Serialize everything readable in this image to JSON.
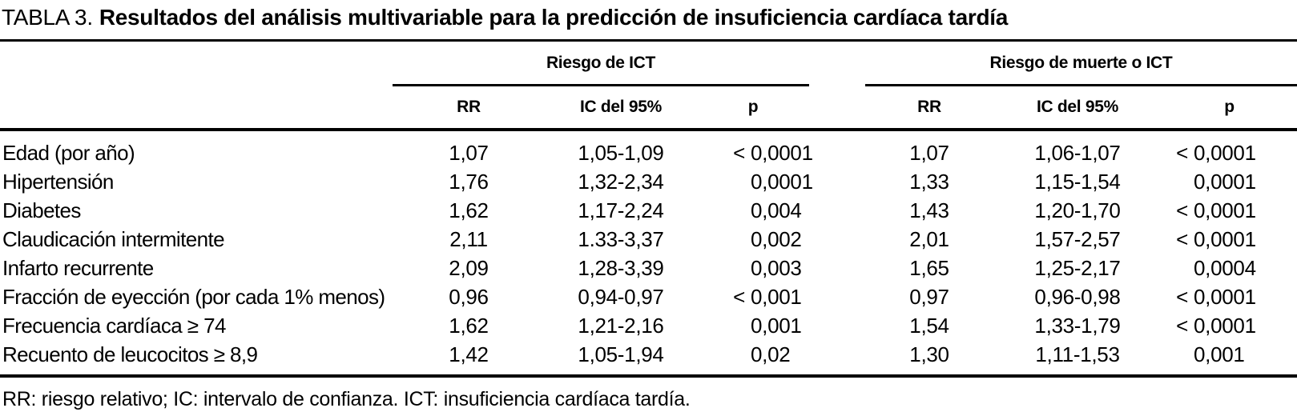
{
  "title": {
    "prefix": "TABLA 3.",
    "text": "Resultados del análisis multivariable para la predicción de insuficiencia cardíaca tardía"
  },
  "groups": [
    {
      "label": "Riesgo de ICT",
      "columns": [
        "RR",
        "IC del 95%",
        "p"
      ]
    },
    {
      "label": "Riesgo de muerte o ICT",
      "columns": [
        "RR",
        "IC del 95%",
        "p"
      ]
    }
  ],
  "rows": [
    {
      "label": "Edad (por año)",
      "ict": {
        "rr": "1,07",
        "ci": "1,05-1,09",
        "p": "< 0,0001"
      },
      "muerte_o_ict": {
        "rr": "1,07",
        "ci": "1,06-1,07",
        "p": "< 0,0001"
      }
    },
    {
      "label": "Hipertensión",
      "ict": {
        "rr": "1,76",
        "ci": "1,32-2,34",
        "p": "0,0001"
      },
      "muerte_o_ict": {
        "rr": "1,33",
        "ci": "1,15-1,54",
        "p": "0,0001"
      }
    },
    {
      "label": "Diabetes",
      "ict": {
        "rr": "1,62",
        "ci": "1,17-2,24",
        "p": "0,004"
      },
      "muerte_o_ict": {
        "rr": "1,43",
        "ci": "1,20-1,70",
        "p": "< 0,0001"
      }
    },
    {
      "label": "Claudicación intermitente",
      "ict": {
        "rr": "2,11",
        "ci": "1.33-3,37",
        "p": "0,002"
      },
      "muerte_o_ict": {
        "rr": "2,01",
        "ci": "1,57-2,57",
        "p": "< 0,0001"
      }
    },
    {
      "label": "Infarto recurrente",
      "ict": {
        "rr": "2,09",
        "ci": "1,28-3,39",
        "p": "0,003"
      },
      "muerte_o_ict": {
        "rr": "1,65",
        "ci": "1,25-2,17",
        "p": "0,0004"
      }
    },
    {
      "label": "Fracción de eyección (por cada 1% menos)",
      "ict": {
        "rr": "0,96",
        "ci": "0,94-0,97",
        "p": "< 0,001"
      },
      "muerte_o_ict": {
        "rr": "0,97",
        "ci": "0,96-0,98",
        "p": "< 0,0001"
      }
    },
    {
      "label": "Frecuencia cardíaca ≥ 74",
      "ict": {
        "rr": "1,62",
        "ci": "1,21-2,16",
        "p": "0,001"
      },
      "muerte_o_ict": {
        "rr": "1,54",
        "ci": "1,33-1,79",
        "p": "< 0,0001"
      }
    },
    {
      "label": "Recuento de leucocitos ≥ 8,9",
      "ict": {
        "rr": "1,42",
        "ci": "1,05-1,94",
        "p": "0,02"
      },
      "muerte_o_ict": {
        "rr": "1,30",
        "ci": "1,11-1,53",
        "p": "0,001"
      }
    }
  ],
  "footnote": "RR: riesgo relativo; IC: intervalo de confianza. ICT: insuficiencia cardíaca tardía.",
  "colors": {
    "background": "#ffffff",
    "text": "#000000",
    "rule": "#000000"
  }
}
